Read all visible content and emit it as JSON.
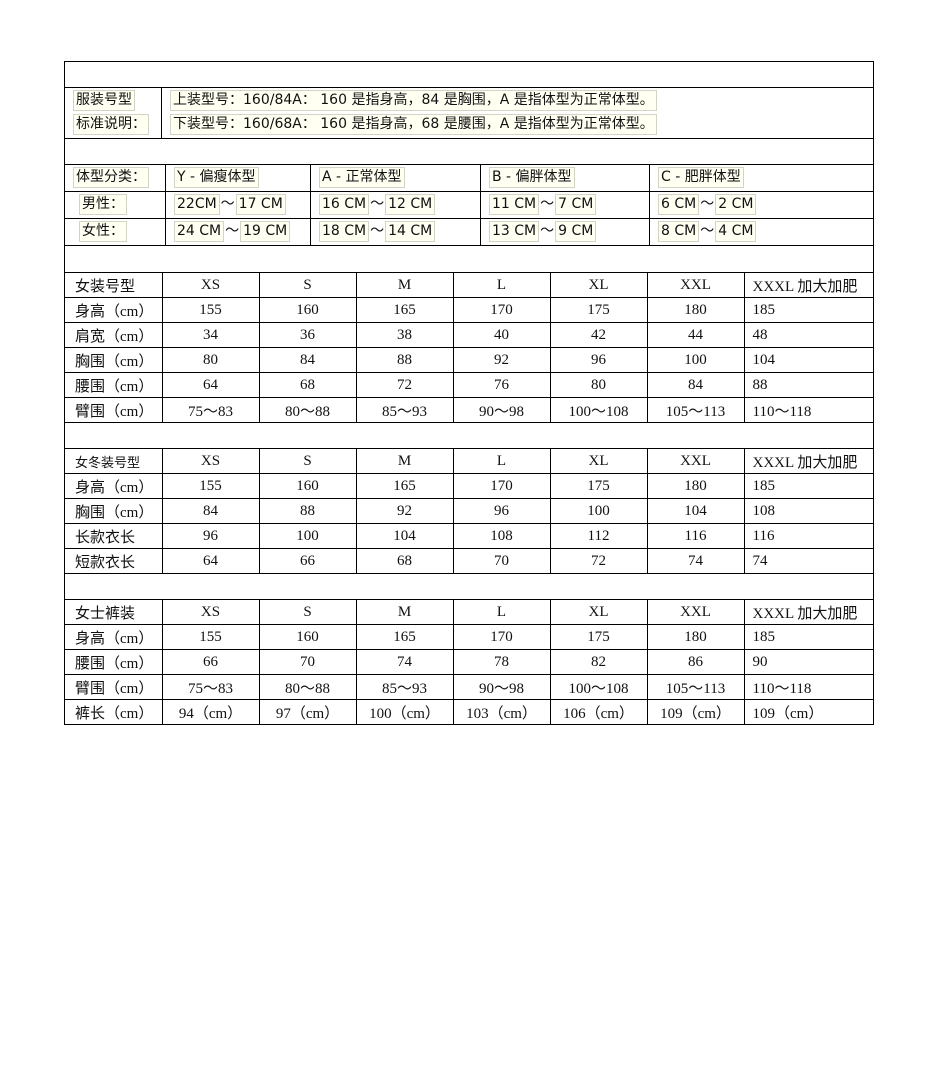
{
  "intro": {
    "label_lines": [
      "服装号型",
      "标准说明："
    ],
    "lines": [
      "上装型号：160/84A： 160 是指身高，84 是胸围，A 是指体型为正常体型。",
      "下装型号：160/68A： 160 是指身高，68 是腰围，A 是指体型为正常体型。"
    ]
  },
  "body_types": {
    "header": [
      "体型分类：",
      "Y - 偏瘦体型",
      "A - 正常体型",
      "B - 偏胖体型",
      "C - 肥胖体型"
    ],
    "rows": [
      {
        "label": "男性：",
        "ranges": [
          [
            "22CM",
            "17 CM"
          ],
          [
            "16 CM",
            "12 CM"
          ],
          [
            "11 CM",
            "7 CM"
          ],
          [
            "6 CM",
            "2 CM"
          ]
        ]
      },
      {
        "label": "女性：",
        "ranges": [
          [
            "24 CM",
            "19 CM"
          ],
          [
            "18 CM",
            "14 CM"
          ],
          [
            "13 CM",
            "9 CM"
          ],
          [
            "8 CM",
            "4 CM"
          ]
        ]
      }
    ],
    "separator": "～"
  },
  "size_tables": [
    {
      "header": [
        "女装号型",
        "XS",
        "S",
        "M",
        "L",
        "XL",
        "XXL",
        "XXXL 加大加肥"
      ],
      "rows": [
        [
          "身高（cm）",
          "155",
          "160",
          "165",
          "170",
          "175",
          "180",
          "185"
        ],
        [
          "肩宽（cm）",
          "34",
          "36",
          "38",
          "40",
          "42",
          "44",
          "48"
        ],
        [
          "胸围（cm）",
          "80",
          "84",
          "88",
          "92",
          "96",
          "100",
          "104"
        ],
        [
          "腰围（cm）",
          "64",
          "68",
          "72",
          "76",
          "80",
          "84",
          "88"
        ],
        [
          "臂围（cm）",
          "75～83",
          "80～88",
          "85～93",
          "90～98",
          "100～108",
          "105～113",
          "110～118"
        ]
      ]
    },
    {
      "header": [
        "女冬装号型",
        "XS",
        "S",
        "M",
        "L",
        "XL",
        "XXL",
        "XXXL 加大加肥"
      ],
      "rows": [
        [
          "身高（cm）",
          "155",
          "160",
          "165",
          "170",
          "175",
          "180",
          "185"
        ],
        [
          "胸围（cm）",
          "84",
          "88",
          "92",
          "96",
          "100",
          "104",
          "108"
        ],
        [
          "长款衣长",
          "96",
          "100",
          "104",
          "108",
          "112",
          "116",
          "116"
        ],
        [
          "短款衣长",
          "64",
          "66",
          "68",
          "70",
          "72",
          "74",
          "74"
        ]
      ]
    },
    {
      "header": [
        "女士裤装",
        "XS",
        "S",
        "M",
        "L",
        "XL",
        "XXL",
        "XXXL 加大加肥"
      ],
      "rows": [
        [
          "身高（cm）",
          "155",
          "160",
          "165",
          "170",
          "175",
          "180",
          "185"
        ],
        [
          "腰围（cm）",
          "66",
          "70",
          "74",
          "78",
          "82",
          "86",
          "90"
        ],
        [
          "臂围（cm）",
          "75～83",
          "80～88",
          "85～93",
          "90～98",
          "100～108",
          "105～113",
          "110～118"
        ],
        [
          "裤长（cm）",
          "94（cm）",
          "97（cm）",
          "100（cm）",
          "103（cm）",
          "106（cm）",
          "109（cm）",
          "109（cm）"
        ]
      ]
    }
  ]
}
